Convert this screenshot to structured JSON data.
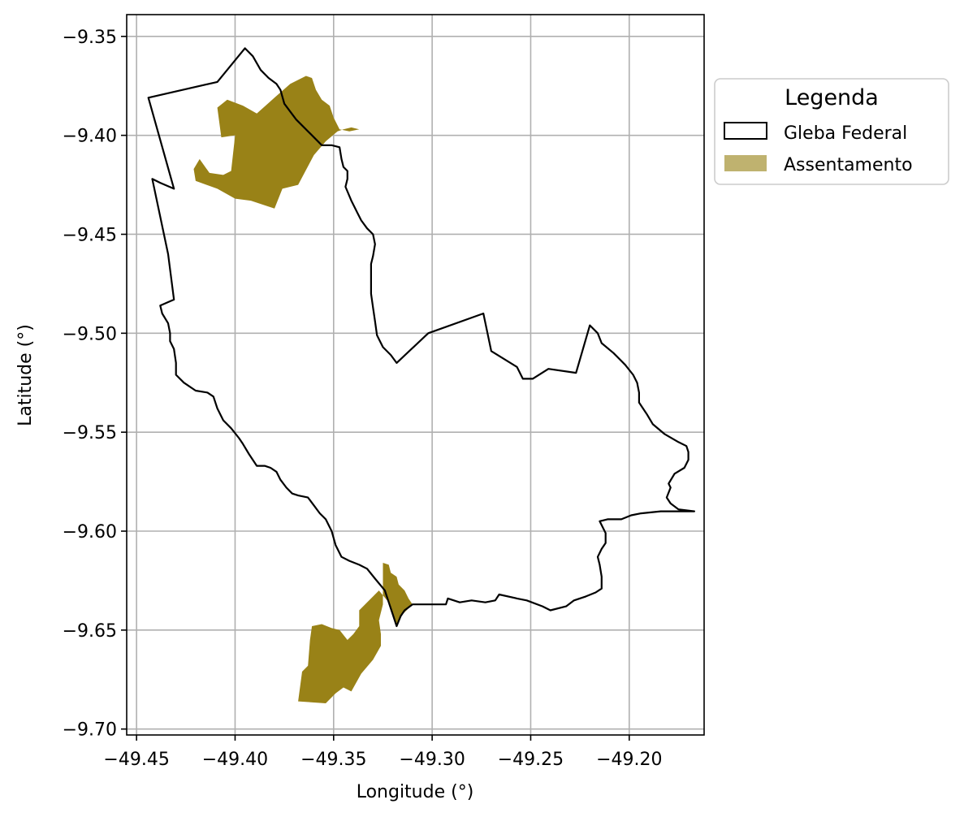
{
  "chart_data": {
    "type": "map",
    "xlabel": "Longitude (°)",
    "ylabel": "Latitude (°)",
    "xlim": [
      -49.455,
      -49.162
    ],
    "ylim": [
      -9.703,
      -9.339
    ],
    "x_ticks": [
      -49.45,
      -49.4,
      -49.35,
      -49.3,
      -49.25,
      -49.2
    ],
    "x_tick_labels": [
      "−49.45",
      "−49.40",
      "−49.35",
      "−49.30",
      "−49.25",
      "−49.20"
    ],
    "y_ticks": [
      -9.35,
      -9.4,
      -9.45,
      -9.5,
      -9.55,
      -9.6,
      -9.65,
      -9.7
    ],
    "y_tick_labels": [
      "−9.35",
      "−9.40",
      "−9.45",
      "−9.50",
      "−9.55",
      "−9.60",
      "−9.65",
      "−9.70"
    ],
    "grid": true,
    "legend": {
      "title": "Legenda",
      "placement": "outside-right-top",
      "entries": [
        {
          "label": "Gleba Federal",
          "kind": "outline",
          "color": "#000000"
        },
        {
          "label": "Assentamento",
          "kind": "fill",
          "color": "#998217",
          "legend_color": "#bfb26f"
        }
      ]
    },
    "layers": [
      {
        "name": "Gleba Federal",
        "style": {
          "fill": "none",
          "stroke": "#000000"
        },
        "coordinates": [
          [
            -49.395,
            -9.356
          ],
          [
            -49.391,
            -9.36
          ],
          [
            -49.387,
            -9.367
          ],
          [
            -49.383,
            -9.371
          ],
          [
            -49.379,
            -9.374
          ],
          [
            -49.377,
            -9.377
          ],
          [
            -49.375,
            -9.384
          ],
          [
            -49.369,
            -9.392
          ],
          [
            -49.362,
            -9.399
          ],
          [
            -49.356,
            -9.405
          ],
          [
            -49.351,
            -9.405
          ],
          [
            -49.347,
            -9.406
          ],
          [
            -49.346,
            -9.412
          ],
          [
            -49.345,
            -9.416
          ],
          [
            -49.343,
            -9.418
          ],
          [
            -49.343,
            -9.422
          ],
          [
            -49.344,
            -9.426
          ],
          [
            -49.341,
            -9.433
          ],
          [
            -49.338,
            -9.439
          ],
          [
            -49.336,
            -9.443
          ],
          [
            -49.333,
            -9.447
          ],
          [
            -49.33,
            -9.45
          ],
          [
            -49.329,
            -9.455
          ],
          [
            -49.33,
            -9.461
          ],
          [
            -49.331,
            -9.465
          ],
          [
            -49.331,
            -9.47
          ],
          [
            -49.331,
            -9.48
          ],
          [
            -49.33,
            -9.487
          ],
          [
            -49.329,
            -9.494
          ],
          [
            -49.328,
            -9.501
          ],
          [
            -49.327,
            -9.503
          ],
          [
            -49.325,
            -9.507
          ],
          [
            -49.321,
            -9.511
          ],
          [
            -49.318,
            -9.515
          ],
          [
            -49.302,
            -9.5
          ],
          [
            -49.274,
            -9.49
          ],
          [
            -49.27,
            -9.509
          ],
          [
            -49.257,
            -9.517
          ],
          [
            -49.254,
            -9.523
          ],
          [
            -49.249,
            -9.523
          ],
          [
            -49.241,
            -9.518
          ],
          [
            -49.227,
            -9.52
          ],
          [
            -49.22,
            -9.496
          ],
          [
            -49.216,
            -9.5
          ],
          [
            -49.214,
            -9.505
          ],
          [
            -49.208,
            -9.51
          ],
          [
            -49.202,
            -9.516
          ],
          [
            -49.198,
            -9.521
          ],
          [
            -49.196,
            -9.525
          ],
          [
            -49.195,
            -9.53
          ],
          [
            -49.195,
            -9.535
          ],
          [
            -49.191,
            -9.541
          ],
          [
            -49.188,
            -9.546
          ],
          [
            -49.182,
            -9.551
          ],
          [
            -49.175,
            -9.555
          ],
          [
            -49.171,
            -9.557
          ],
          [
            -49.17,
            -9.56
          ],
          [
            -49.17,
            -9.564
          ],
          [
            -49.172,
            -9.568
          ],
          [
            -49.177,
            -9.571
          ],
          [
            -49.18,
            -9.576
          ],
          [
            -49.179,
            -9.578
          ],
          [
            -49.181,
            -9.583
          ],
          [
            -49.179,
            -9.586
          ],
          [
            -49.175,
            -9.589
          ],
          [
            -49.167,
            -9.59
          ],
          [
            -49.184,
            -9.59
          ],
          [
            -49.194,
            -9.591
          ],
          [
            -49.199,
            -9.592
          ],
          [
            -49.204,
            -9.594
          ],
          [
            -49.211,
            -9.594
          ],
          [
            -49.215,
            -9.595
          ],
          [
            -49.212,
            -9.601
          ],
          [
            -49.212,
            -9.606
          ],
          [
            -49.214,
            -9.609
          ],
          [
            -49.216,
            -9.613
          ],
          [
            -49.215,
            -9.617
          ],
          [
            -49.214,
            -9.623
          ],
          [
            -49.214,
            -9.629
          ],
          [
            -49.217,
            -9.631
          ],
          [
            -49.222,
            -9.633
          ],
          [
            -49.228,
            -9.635
          ],
          [
            -49.232,
            -9.638
          ],
          [
            -49.24,
            -9.64
          ],
          [
            -49.244,
            -9.638
          ],
          [
            -49.252,
            -9.635
          ],
          [
            -49.257,
            -9.634
          ],
          [
            -49.266,
            -9.632
          ],
          [
            -49.268,
            -9.635
          ],
          [
            -49.273,
            -9.636
          ],
          [
            -49.28,
            -9.635
          ],
          [
            -49.286,
            -9.636
          ],
          [
            -49.292,
            -9.634
          ],
          [
            -49.293,
            -9.637
          ],
          [
            -49.3,
            -9.637
          ],
          [
            -49.31,
            -9.637
          ],
          [
            -49.314,
            -9.64
          ],
          [
            -49.316,
            -9.643
          ],
          [
            -49.318,
            -9.648
          ],
          [
            -49.32,
            -9.642
          ],
          [
            -49.322,
            -9.636
          ],
          [
            -49.324,
            -9.63
          ],
          [
            -49.329,
            -9.624
          ],
          [
            -49.333,
            -9.619
          ],
          [
            -49.337,
            -9.617
          ],
          [
            -49.342,
            -9.615
          ],
          [
            -49.346,
            -9.613
          ],
          [
            -49.349,
            -9.607
          ],
          [
            -49.351,
            -9.6
          ],
          [
            -49.354,
            -9.594
          ],
          [
            -49.357,
            -9.591
          ],
          [
            -49.36,
            -9.587
          ],
          [
            -49.363,
            -9.583
          ],
          [
            -49.368,
            -9.582
          ],
          [
            -49.371,
            -9.581
          ],
          [
            -49.374,
            -9.578
          ],
          [
            -49.377,
            -9.574
          ],
          [
            -49.379,
            -9.57
          ],
          [
            -49.382,
            -9.568
          ],
          [
            -49.385,
            -9.567
          ],
          [
            -49.389,
            -9.567
          ],
          [
            -49.393,
            -9.561
          ],
          [
            -49.396,
            -9.556
          ],
          [
            -49.398,
            -9.553
          ],
          [
            -49.402,
            -9.548
          ],
          [
            -49.406,
            -9.544
          ],
          [
            -49.409,
            -9.538
          ],
          [
            -49.411,
            -9.532
          ],
          [
            -49.414,
            -9.53
          ],
          [
            -49.42,
            -9.529
          ],
          [
            -49.426,
            -9.525
          ],
          [
            -49.43,
            -9.521
          ],
          [
            -49.43,
            -9.515
          ],
          [
            -49.431,
            -9.508
          ],
          [
            -49.433,
            -9.504
          ],
          [
            -49.433,
            -9.5
          ],
          [
            -49.434,
            -9.495
          ],
          [
            -49.437,
            -9.49
          ],
          [
            -49.438,
            -9.486
          ],
          [
            -49.431,
            -9.483
          ],
          [
            -49.434,
            -9.46
          ],
          [
            -49.442,
            -9.422
          ],
          [
            -49.438,
            -9.424
          ],
          [
            -49.431,
            -9.427
          ],
          [
            -49.444,
            -9.381
          ],
          [
            -49.409,
            -9.373
          ],
          [
            -49.395,
            -9.356
          ]
        ]
      },
      {
        "name": "Assentamento",
        "style": {
          "fill": "#998217",
          "stroke": "none"
        },
        "coordinates": [
          [
            -49.372,
            -9.374
          ],
          [
            -49.364,
            -9.37
          ],
          [
            -49.361,
            -9.371
          ],
          [
            -49.359,
            -9.377
          ],
          [
            -49.356,
            -9.382
          ],
          [
            -49.352,
            -9.385
          ],
          [
            -49.35,
            -9.391
          ],
          [
            -49.347,
            -9.397
          ],
          [
            -49.342,
            -9.398
          ],
          [
            -49.337,
            -9.397
          ],
          [
            -49.341,
            -9.396
          ],
          [
            -49.345,
            -9.397
          ],
          [
            -49.348,
            -9.398
          ],
          [
            -49.354,
            -9.403
          ],
          [
            -49.36,
            -9.41
          ],
          [
            -49.368,
            -9.425
          ],
          [
            -49.376,
            -9.427
          ],
          [
            -49.38,
            -9.437
          ],
          [
            -49.392,
            -9.433
          ],
          [
            -49.4,
            -9.432
          ],
          [
            -49.409,
            -9.427
          ],
          [
            -49.42,
            -9.423
          ],
          [
            -49.421,
            -9.417
          ],
          [
            -49.418,
            -9.412
          ],
          [
            -49.413,
            -9.419
          ],
          [
            -49.406,
            -9.42
          ],
          [
            -49.402,
            -9.418
          ],
          [
            -49.4,
            -9.4
          ],
          [
            -49.407,
            -9.401
          ],
          [
            -49.409,
            -9.386
          ],
          [
            -49.404,
            -9.382
          ],
          [
            -49.396,
            -9.385
          ],
          [
            -49.389,
            -9.389
          ],
          [
            -49.38,
            -9.381
          ],
          [
            -49.372,
            -9.374
          ]
        ]
      },
      {
        "name": "Assentamento",
        "style": {
          "fill": "#998217",
          "stroke": "none"
        },
        "coordinates": [
          [
            -49.325,
            -9.616
          ],
          [
            -49.322,
            -9.617
          ],
          [
            -49.321,
            -9.621
          ],
          [
            -49.318,
            -9.623
          ],
          [
            -49.317,
            -9.627
          ],
          [
            -49.314,
            -9.63
          ],
          [
            -49.312,
            -9.634
          ],
          [
            -49.31,
            -9.637
          ],
          [
            -49.316,
            -9.643
          ],
          [
            -49.318,
            -9.648
          ],
          [
            -49.322,
            -9.636
          ],
          [
            -49.327,
            -9.63
          ],
          [
            -49.333,
            -9.636
          ],
          [
            -49.337,
            -9.64
          ],
          [
            -49.337,
            -9.648
          ],
          [
            -49.34,
            -9.652
          ],
          [
            -49.343,
            -9.655
          ],
          [
            -49.347,
            -9.65
          ],
          [
            -49.351,
            -9.649
          ],
          [
            -49.356,
            -9.647
          ],
          [
            -49.361,
            -9.648
          ],
          [
            -49.362,
            -9.655
          ],
          [
            -49.363,
            -9.668
          ],
          [
            -49.366,
            -9.671
          ],
          [
            -49.368,
            -9.686
          ],
          [
            -49.354,
            -9.687
          ],
          [
            -49.349,
            -9.682
          ],
          [
            -49.345,
            -9.679
          ],
          [
            -49.341,
            -9.681
          ],
          [
            -49.336,
            -9.672
          ],
          [
            -49.33,
            -9.665
          ],
          [
            -49.326,
            -9.658
          ],
          [
            -49.326,
            -9.652
          ],
          [
            -49.327,
            -9.645
          ],
          [
            -49.325,
            -9.637
          ],
          [
            -49.325,
            -9.616
          ]
        ]
      }
    ]
  }
}
